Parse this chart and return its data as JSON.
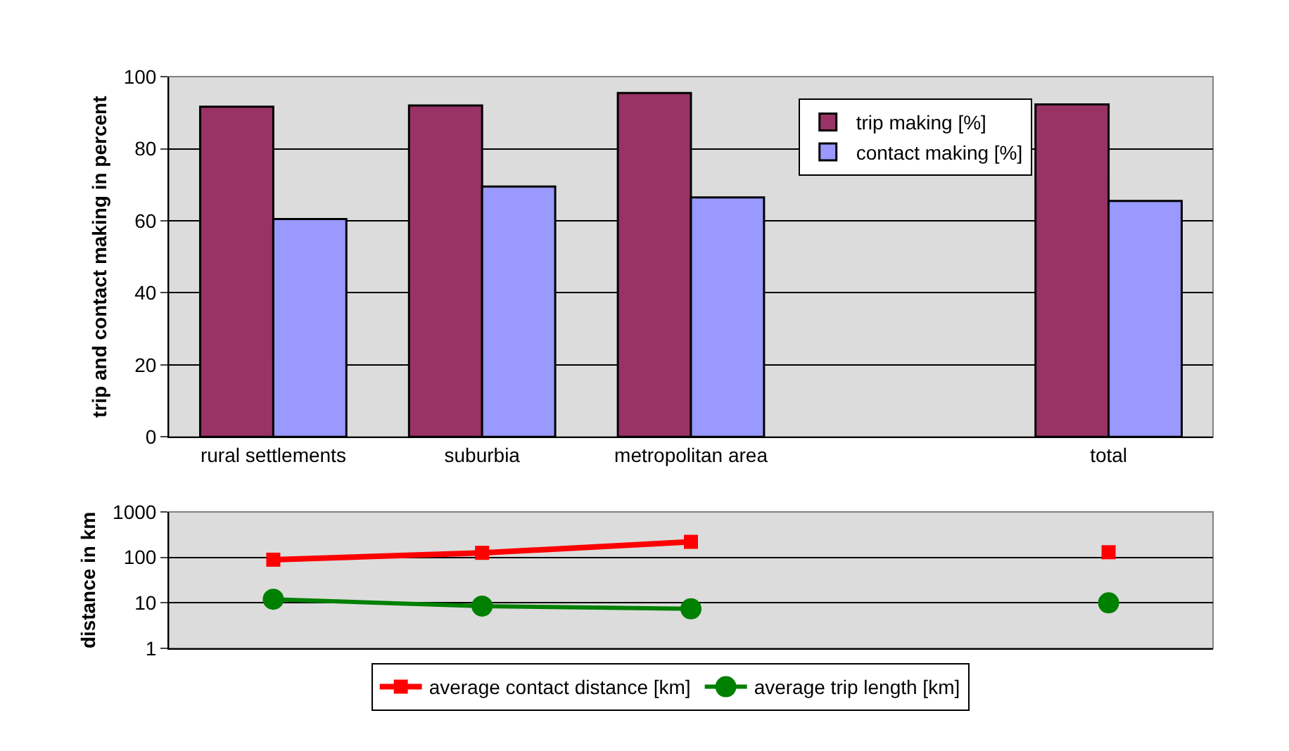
{
  "chart_data": [
    {
      "type": "bar",
      "ylabel": "trip and contact making in percent",
      "categories": [
        "rural settlements",
        "suburbia",
        "metropolitan area",
        null,
        "total"
      ],
      "series": [
        {
          "name": "trip making [%]",
          "color": "#993366",
          "values": [
            91.7,
            92,
            95.5,
            null,
            92.3
          ]
        },
        {
          "name": "contact making [%]",
          "color": "#9999ff",
          "values": [
            60.5,
            69.5,
            66.5,
            null,
            65.5
          ]
        }
      ],
      "ylim": [
        0,
        100
      ],
      "yticks": [
        0,
        20,
        40,
        60,
        80,
        100
      ],
      "grid": "y",
      "legend": "top right"
    },
    {
      "type": "line",
      "ylabel": "distance in km",
      "categories": [
        null,
        null,
        null,
        null,
        null
      ],
      "series": [
        {
          "name": "average contact distance [km]",
          "color": "#ff0000",
          "marker": "square",
          "values": [
            89,
            126,
            220,
            null,
            130
          ]
        },
        {
          "name": "average trip length [km]",
          "color": "#008000",
          "marker": "circle",
          "values": [
            12,
            8.5,
            7.4,
            null,
            10
          ]
        }
      ],
      "log": "y",
      "ylim": [
        1,
        1000
      ],
      "yticks": [
        1,
        10,
        100,
        1000
      ],
      "grid": "y",
      "legend": "bottom",
      "line_style": "solid",
      "tick_labels": "y"
    }
  ]
}
